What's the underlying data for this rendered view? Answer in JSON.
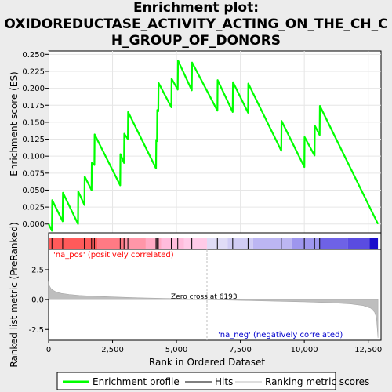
{
  "title": {
    "line1": "Enrichment plot:",
    "line2": "OXIDOREDUCTASE_ACTIVITY_ACTING_ON_THE_CH_C",
    "line3": "H_GROUP_OF_DONORS"
  },
  "colors": {
    "enrichment": "#00ff00",
    "hits": "#000000",
    "metric_fill": "#bebebe",
    "pos_label": "#ff0000",
    "neg_label": "#0000cc",
    "zero_cross_line": "#bebebe"
  },
  "chart_data": {
    "type": "line",
    "x_range": [
      0,
      13000
    ],
    "x_ticks": [
      "0",
      "2,500",
      "5,000",
      "7,500",
      "10,000",
      "12,500"
    ],
    "x_tick_values": [
      0,
      2500,
      5000,
      7500,
      10000,
      12500
    ],
    "xlabel": "Rank in Ordered Dataset",
    "top_panel": {
      "ylabel": "Enrichment score (ES)",
      "ylim": [
        -0.013,
        0.255
      ],
      "y_ticks": [
        "0.000",
        "0.025",
        "0.050",
        "0.075",
        "0.100",
        "0.125",
        "0.150",
        "0.175",
        "0.200",
        "0.225",
        "0.250"
      ],
      "y_tick_values": [
        0,
        0.025,
        0.05,
        0.075,
        0.1,
        0.125,
        0.15,
        0.175,
        0.2,
        0.225,
        0.25
      ],
      "series": [
        {
          "name": "Enrichment profile",
          "x": [
            0,
            130,
            140,
            550,
            560,
            1150,
            1160,
            1400,
            1410,
            1680,
            1690,
            1790,
            1800,
            2800,
            2810,
            2950,
            2960,
            3100,
            3110,
            4200,
            4210,
            4240,
            4250,
            4290,
            4300,
            4800,
            4810,
            5050,
            5060,
            5600,
            5610,
            6600,
            6610,
            7200,
            7210,
            7800,
            7810,
            9100,
            9110,
            10000,
            10010,
            10400,
            10410,
            10600,
            10610,
            12880
          ],
          "y": [
            0.0,
            -0.01,
            0.035,
            0.004,
            0.046,
            0.0,
            0.048,
            0.028,
            0.07,
            0.05,
            0.09,
            0.087,
            0.132,
            0.057,
            0.103,
            0.09,
            0.133,
            0.125,
            0.165,
            0.082,
            0.124,
            0.122,
            0.168,
            0.166,
            0.208,
            0.172,
            0.214,
            0.198,
            0.241,
            0.197,
            0.238,
            0.167,
            0.212,
            0.165,
            0.209,
            0.164,
            0.207,
            0.108,
            0.152,
            0.084,
            0.128,
            0.101,
            0.145,
            0.131,
            0.174,
            0.0
          ]
        }
      ]
    },
    "hits": [
      130,
      550,
      1150,
      1400,
      1680,
      1790,
      2800,
      2950,
      3100,
      4200,
      4240,
      4290,
      4800,
      5050,
      5600,
      6600,
      7200,
      7800,
      9100,
      10000,
      10400,
      10600
    ],
    "bottom_panel": {
      "ylabel": "Ranked list metric (PreRanked)",
      "ylim": [
        -3.4,
        4.2
      ],
      "y_ticks": [
        "-2.5",
        "0.0",
        "2.5"
      ],
      "y_tick_values": [
        -2.5,
        0,
        2.5
      ],
      "series": [
        {
          "name": "Ranking metric scores",
          "x": [
            0,
            30,
            100,
            200,
            300,
            500,
            800,
            1200,
            1800,
            2500,
            3500,
            4500,
            5500,
            6193,
            7000,
            8000,
            9000,
            10000,
            11000,
            11800,
            12300,
            12600,
            12750,
            12820,
            12880
          ],
          "y": [
            1.5,
            1.15,
            0.9,
            0.75,
            0.63,
            0.52,
            0.43,
            0.35,
            0.28,
            0.22,
            0.15,
            0.1,
            0.05,
            0.0,
            -0.04,
            -0.09,
            -0.14,
            -0.19,
            -0.26,
            -0.36,
            -0.5,
            -0.72,
            -1.05,
            -1.5,
            -3.2
          ]
        }
      ],
      "zero_cross_label": "Zero cross at 6193",
      "zero_cross_x": 6193,
      "pos_label": "'na_pos' (positively correlated)",
      "neg_label": "'na_neg' (negatively correlated)"
    },
    "color_bar": {
      "segments": [
        {
          "from": 0,
          "to": 1900,
          "color": "#ff5a5a"
        },
        {
          "from": 1900,
          "to": 3000,
          "color": "#ff7a84"
        },
        {
          "from": 3000,
          "to": 3800,
          "color": "#ff96a8"
        },
        {
          "from": 3800,
          "to": 4400,
          "color": "#ffaac4"
        },
        {
          "from": 4400,
          "to": 5300,
          "color": "#ffbcdc"
        },
        {
          "from": 5300,
          "to": 6193,
          "color": "#ffcbe8"
        },
        {
          "from": 6193,
          "to": 7000,
          "color": "#e0dcf6"
        },
        {
          "from": 7000,
          "to": 8000,
          "color": "#d0ccf4"
        },
        {
          "from": 8000,
          "to": 9500,
          "color": "#bcb6f2"
        },
        {
          "from": 9500,
          "to": 10600,
          "color": "#9e96ee"
        },
        {
          "from": 10600,
          "to": 11700,
          "color": "#6e62e6"
        },
        {
          "from": 11700,
          "to": 12550,
          "color": "#5a4ce0"
        },
        {
          "from": 12550,
          "to": 12880,
          "color": "#1a0ccc"
        }
      ]
    },
    "legend": {
      "placement": "bottom",
      "entries": [
        "Enrichment profile",
        "Hits",
        "Ranking metric scores"
      ]
    }
  }
}
